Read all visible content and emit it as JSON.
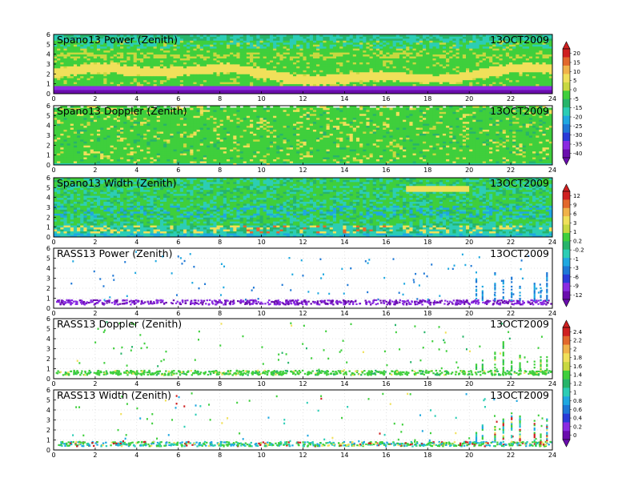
{
  "colors": {
    "palette": [
      "#6a0dad",
      "#8a2be2",
      "#2a3bd8",
      "#1e78d6",
      "#1fa8e0",
      "#2ccdb5",
      "#27b46a",
      "#3fcf3c",
      "#c8d840",
      "#f0e05a",
      "#f0b24a",
      "#e2682c",
      "#cf2020"
    ],
    "frame": "#000000"
  },
  "chart_data": [
    {
      "type": "heatmap",
      "title": "Spano13 Power (Zenith)",
      "date": "13OCT2009",
      "x_ticks": [
        "0",
        "2",
        "4",
        "6",
        "8",
        "10",
        "12",
        "14",
        "16",
        "18",
        "20",
        "22",
        "24"
      ],
      "y_ticks": [
        "0",
        "1",
        "2",
        "3",
        "4",
        "5",
        "6"
      ],
      "xlim": [
        0,
        24
      ],
      "ylim": [
        0,
        6
      ],
      "colorbar": "cb1"
    },
    {
      "type": "heatmap",
      "title": "Spano13 Doppler (Zenith)",
      "date": "13OCT2009",
      "x_ticks": [
        "0",
        "2",
        "4",
        "6",
        "8",
        "10",
        "12",
        "14",
        "16",
        "18",
        "20",
        "22",
        "24"
      ],
      "y_ticks": [
        "0",
        "1",
        "2",
        "3",
        "4",
        "5",
        "6"
      ],
      "xlim": [
        0,
        24
      ],
      "ylim": [
        0,
        6
      ],
      "colorbar": "cb1"
    },
    {
      "type": "heatmap",
      "title": "Spano13 Width (Zenith)",
      "date": "13OCT2009",
      "x_ticks": [
        "0",
        "2",
        "4",
        "6",
        "8",
        "10",
        "12",
        "14",
        "16",
        "18",
        "20",
        "22",
        "24"
      ],
      "y_ticks": [
        "0",
        "1",
        "2",
        "3",
        "4",
        "5",
        "6"
      ],
      "xlim": [
        0,
        24
      ],
      "ylim": [
        0,
        6
      ],
      "colorbar": "cb2"
    },
    {
      "type": "scatter",
      "title": "RASS13 Power (Zenith)",
      "date": "13OCT2009",
      "x_ticks": [
        "0",
        "2",
        "4",
        "6",
        "8",
        "10",
        "12",
        "14",
        "16",
        "18",
        "20",
        "22",
        "24"
      ],
      "y_ticks": [
        "0",
        "1",
        "2",
        "3",
        "4",
        "5",
        "6"
      ],
      "xlim": [
        0,
        24
      ],
      "ylim": [
        0,
        6
      ],
      "grid": true,
      "colorbar": "cb2"
    },
    {
      "type": "scatter",
      "title": "RASS13 Doppler (Zenith)",
      "date": "13OCT2009",
      "x_ticks": [
        "0",
        "2",
        "4",
        "6",
        "8",
        "10",
        "12",
        "14",
        "16",
        "18",
        "20",
        "22",
        "24"
      ],
      "y_ticks": [
        "0",
        "1",
        "2",
        "3",
        "4",
        "5",
        "6"
      ],
      "xlim": [
        0,
        24
      ],
      "ylim": [
        0,
        6
      ],
      "grid": true,
      "colorbar": "cb3"
    },
    {
      "type": "scatter",
      "title": "RASS13 Width (Zenith)",
      "date": "13OCT2009",
      "x_ticks": [
        "0",
        "2",
        "4",
        "6",
        "8",
        "10",
        "12",
        "14",
        "16",
        "18",
        "20",
        "22",
        "24"
      ],
      "y_ticks": [
        "0",
        "1",
        "2",
        "3",
        "4",
        "5",
        "6"
      ],
      "xlim": [
        0,
        24
      ],
      "ylim": [
        0,
        6
      ],
      "grid": true,
      "colorbar": "cb3"
    }
  ],
  "colorbars": {
    "cb1": [
      "20",
      "15",
      "10",
      "5",
      "0",
      "-5",
      "-15",
      "-20",
      "-25",
      "-30",
      "-35",
      "-40"
    ],
    "cb2": [
      "12",
      "9",
      "6",
      "3",
      "1",
      "0.2",
      "-0.2",
      "-1",
      "-3",
      "-6",
      "-9",
      "-12"
    ],
    "cb3": [
      "2.4",
      "2.2",
      "2",
      "1.8",
      "1.6",
      "1.4",
      "1.2",
      "1",
      "0.8",
      "0.6",
      "0.4",
      "0.2",
      "0"
    ]
  }
}
